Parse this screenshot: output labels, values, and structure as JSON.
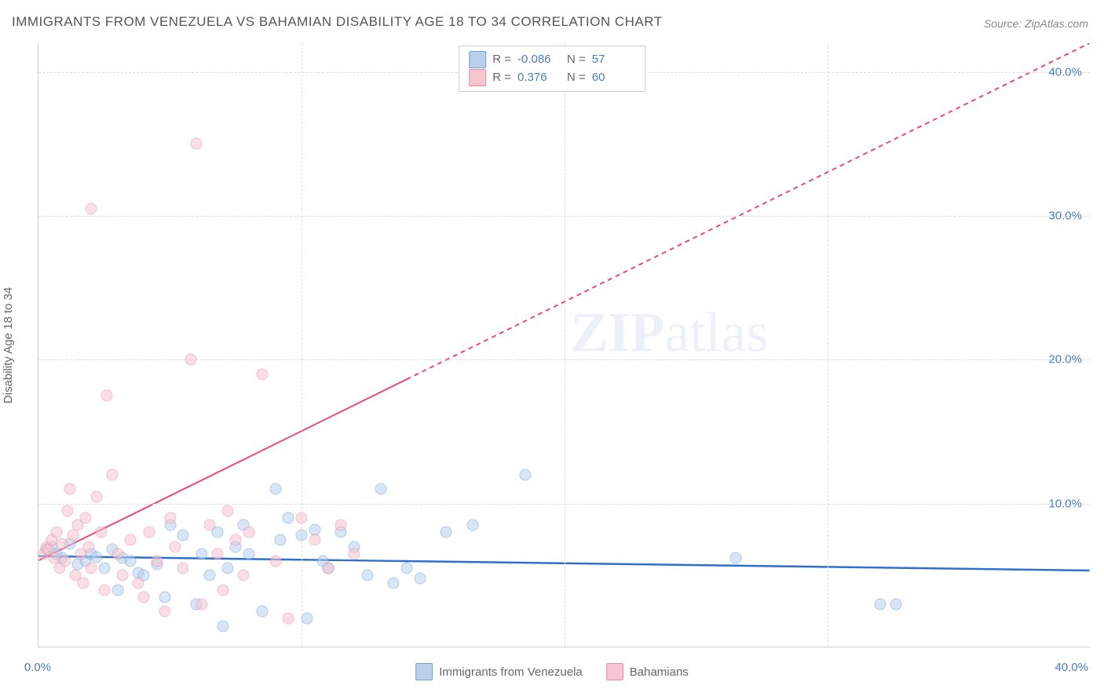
{
  "title": "IMMIGRANTS FROM VENEZUELA VS BAHAMIAN DISABILITY AGE 18 TO 34 CORRELATION CHART",
  "source": "Source: ZipAtlas.com",
  "ylabel": "Disability Age 18 to 34",
  "watermark_bold": "ZIP",
  "watermark_rest": "atlas",
  "chart": {
    "type": "scatter",
    "xlim": [
      0,
      40
    ],
    "ylim": [
      0,
      42
    ],
    "y_ticks": [
      10,
      20,
      30,
      40
    ],
    "y_tick_labels": [
      "10.0%",
      "20.0%",
      "30.0%",
      "40.0%"
    ],
    "x_ticks": [
      10,
      20,
      30
    ],
    "x_end_labels": [
      "0.0%",
      "40.0%"
    ],
    "grid_color": "#dddddd",
    "background_color": "#ffffff",
    "axis_color": "#cccccc",
    "series": [
      {
        "name": "Immigrants from Venezuela",
        "fill": "#b9d0ec",
        "stroke": "#6f9fd8",
        "trend_color": "#2e6fd0",
        "r": -0.086,
        "n": 57,
        "trend": {
          "x1": 0,
          "y1": 6.3,
          "x2": 40,
          "y2": 5.3
        },
        "points": [
          [
            0.3,
            6.8
          ],
          [
            0.5,
            7.0
          ],
          [
            0.7,
            6.5
          ],
          [
            0.9,
            6.2
          ],
          [
            1.2,
            7.2
          ],
          [
            1.5,
            5.8
          ],
          [
            1.8,
            6.0
          ],
          [
            2.0,
            6.5
          ],
          [
            2.2,
            6.3
          ],
          [
            2.5,
            5.5
          ],
          [
            2.8,
            6.8
          ],
          [
            3.0,
            4.0
          ],
          [
            3.2,
            6.2
          ],
          [
            3.5,
            6.0
          ],
          [
            3.8,
            5.2
          ],
          [
            4.0,
            5.0
          ],
          [
            4.5,
            5.8
          ],
          [
            4.8,
            3.5
          ],
          [
            5.0,
            8.5
          ],
          [
            5.5,
            7.8
          ],
          [
            6.0,
            3.0
          ],
          [
            6.2,
            6.5
          ],
          [
            6.5,
            5.0
          ],
          [
            6.8,
            8.0
          ],
          [
            7.0,
            1.5
          ],
          [
            7.2,
            5.5
          ],
          [
            7.5,
            7.0
          ],
          [
            7.8,
            8.5
          ],
          [
            8.0,
            6.5
          ],
          [
            8.5,
            2.5
          ],
          [
            9.0,
            11.0
          ],
          [
            9.2,
            7.5
          ],
          [
            9.5,
            9.0
          ],
          [
            10.0,
            7.8
          ],
          [
            10.2,
            2.0
          ],
          [
            10.5,
            8.2
          ],
          [
            10.8,
            6.0
          ],
          [
            11.0,
            5.5
          ],
          [
            11.5,
            8.0
          ],
          [
            12.0,
            7.0
          ],
          [
            12.5,
            5.0
          ],
          [
            13.0,
            11.0
          ],
          [
            13.5,
            4.5
          ],
          [
            14.0,
            5.5
          ],
          [
            14.5,
            4.8
          ],
          [
            15.5,
            8.0
          ],
          [
            16.5,
            8.5
          ],
          [
            18.5,
            12.0
          ],
          [
            26.5,
            6.2
          ],
          [
            32.0,
            3.0
          ],
          [
            32.6,
            3.0
          ]
        ]
      },
      {
        "name": "Bahamians",
        "fill": "#f5c6d1",
        "stroke": "#ea8ba7",
        "trend_color": "#e84a7a",
        "r": 0.376,
        "n": 60,
        "trend": {
          "x1": 0,
          "y1": 6.0,
          "x2": 40,
          "y2": 42.0
        },
        "trend_dash_after_x": 14,
        "points": [
          [
            0.2,
            6.5
          ],
          [
            0.3,
            7.0
          ],
          [
            0.4,
            6.8
          ],
          [
            0.5,
            7.5
          ],
          [
            0.6,
            6.2
          ],
          [
            0.7,
            8.0
          ],
          [
            0.8,
            5.5
          ],
          [
            0.9,
            7.2
          ],
          [
            1.0,
            6.0
          ],
          [
            1.1,
            9.5
          ],
          [
            1.2,
            11.0
          ],
          [
            1.3,
            7.8
          ],
          [
            1.4,
            5.0
          ],
          [
            1.5,
            8.5
          ],
          [
            1.6,
            6.5
          ],
          [
            1.7,
            4.5
          ],
          [
            1.8,
            9.0
          ],
          [
            1.9,
            7.0
          ],
          [
            2.0,
            30.5
          ],
          [
            2.0,
            5.5
          ],
          [
            2.2,
            10.5
          ],
          [
            2.4,
            8.0
          ],
          [
            2.5,
            4.0
          ],
          [
            2.6,
            17.5
          ],
          [
            2.8,
            12.0
          ],
          [
            3.0,
            6.5
          ],
          [
            3.2,
            5.0
          ],
          [
            3.5,
            7.5
          ],
          [
            3.8,
            4.5
          ],
          [
            4.0,
            3.5
          ],
          [
            4.2,
            8.0
          ],
          [
            4.5,
            6.0
          ],
          [
            4.8,
            2.5
          ],
          [
            5.0,
            9.0
          ],
          [
            5.2,
            7.0
          ],
          [
            5.5,
            5.5
          ],
          [
            5.8,
            20.0
          ],
          [
            6.0,
            35.0
          ],
          [
            6.2,
            3.0
          ],
          [
            6.5,
            8.5
          ],
          [
            6.8,
            6.5
          ],
          [
            7.0,
            4.0
          ],
          [
            7.2,
            9.5
          ],
          [
            7.5,
            7.5
          ],
          [
            7.8,
            5.0
          ],
          [
            8.0,
            8.0
          ],
          [
            8.5,
            19.0
          ],
          [
            9.0,
            6.0
          ],
          [
            9.5,
            2.0
          ],
          [
            10.0,
            9.0
          ],
          [
            10.5,
            7.5
          ],
          [
            11.0,
            5.5
          ],
          [
            11.5,
            8.5
          ],
          [
            12.0,
            6.5
          ]
        ]
      }
    ]
  },
  "legend_top": {
    "r_label": "R =",
    "n_label": "N ="
  },
  "legend_bottom": [
    {
      "label": "Immigrants from Venezuela",
      "fill": "#b9d0ec",
      "stroke": "#6f9fd8"
    },
    {
      "label": "Bahamians",
      "fill": "#f5c6d1",
      "stroke": "#ea8ba7"
    }
  ]
}
